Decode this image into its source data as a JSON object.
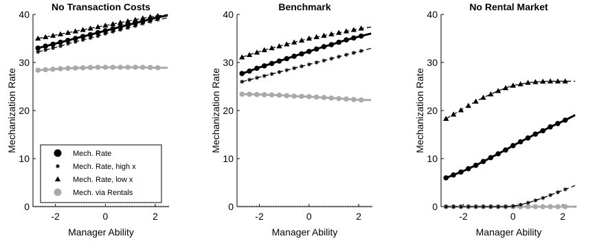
{
  "chart_data": [
    {
      "type": "line",
      "title": "No Transaction Costs",
      "xlabel": "Manager Ability",
      "ylabel": "Mechanization Rate",
      "xlim": [
        -2.9,
        2.55
      ],
      "ylim": [
        0,
        40
      ],
      "xticks": [
        -2,
        0,
        2
      ],
      "yticks": [
        0,
        10,
        20,
        30,
        40
      ],
      "grid": false,
      "legend": "bottom-left",
      "series": [
        {
          "key": "mech",
          "name": "Mech. Rate",
          "style": "solid-thick",
          "marker": "circle",
          "color": "#000000",
          "x": [
            -2.7,
            -2.4,
            -2.1,
            -1.8,
            -1.5,
            -1.2,
            -0.9,
            -0.6,
            -0.3,
            0.0,
            0.3,
            0.6,
            0.9,
            1.2,
            1.5,
            1.8,
            2.1,
            2.4
          ],
          "y": [
            33.0,
            33.4,
            33.8,
            34.2,
            34.6,
            35.0,
            35.4,
            35.8,
            36.2,
            36.6,
            37.0,
            37.4,
            37.8,
            38.2,
            38.6,
            39.0,
            39.4,
            39.7
          ]
        },
        {
          "key": "high",
          "name": "Mech. Rate, high x",
          "style": "dashed",
          "marker": "star",
          "color": "#000000",
          "x": [
            -2.7,
            -2.4,
            -2.1,
            -1.8,
            -1.5,
            -1.2,
            -0.9,
            -0.6,
            -0.3,
            0.0,
            0.3,
            0.6,
            0.9,
            1.2,
            1.5,
            1.8,
            2.1,
            2.4
          ],
          "y": [
            32.2,
            32.6,
            33.0,
            33.4,
            33.9,
            34.3,
            34.7,
            35.1,
            35.5,
            36.0,
            36.4,
            36.8,
            37.2,
            37.6,
            38.1,
            38.5,
            38.9,
            39.2
          ]
        },
        {
          "key": "low",
          "name": "Mech. Rate, low x",
          "style": "dashed",
          "marker": "triangle",
          "color": "#000000",
          "x": [
            -2.7,
            -2.4,
            -2.1,
            -1.8,
            -1.5,
            -1.2,
            -0.9,
            -0.6,
            -0.3,
            0.0,
            0.3,
            0.6,
            0.9,
            1.2,
            1.5,
            1.8,
            2.1,
            2.4
          ],
          "y": [
            35.0,
            35.3,
            35.6,
            35.9,
            36.2,
            36.5,
            36.8,
            37.1,
            37.4,
            37.7,
            38.0,
            38.3,
            38.6,
            38.9,
            39.2,
            39.5,
            39.7,
            39.9
          ]
        },
        {
          "key": "rental",
          "name": "Mech. via Rentals",
          "style": "solid-thick",
          "marker": "circle",
          "color": "#aaaaaa",
          "x": [
            -2.7,
            -2.4,
            -2.1,
            -1.8,
            -1.5,
            -1.2,
            -0.9,
            -0.6,
            -0.3,
            0.0,
            0.3,
            0.6,
            0.9,
            1.2,
            1.5,
            1.8,
            2.1,
            2.4
          ],
          "y": [
            28.4,
            28.5,
            28.6,
            28.7,
            28.8,
            28.85,
            28.9,
            28.95,
            29.0,
            29.0,
            29.0,
            29.0,
            29.0,
            29.0,
            29.0,
            28.95,
            28.9,
            28.9
          ]
        }
      ]
    },
    {
      "type": "line",
      "title": "Benchmark",
      "xlabel": "Manager Ability",
      "ylabel": "Mechanization Rate",
      "xlim": [
        -2.9,
        2.55
      ],
      "ylim": [
        0,
        40
      ],
      "xticks": [
        -2,
        0,
        2
      ],
      "yticks": [
        0,
        10,
        20,
        30,
        40
      ],
      "grid": false,
      "series": [
        {
          "key": "mech",
          "name": "Mech. Rate",
          "style": "solid-thick",
          "marker": "circle",
          "color": "#000000",
          "x": [
            -2.7,
            -2.4,
            -2.1,
            -1.8,
            -1.5,
            -1.2,
            -0.9,
            -0.6,
            -0.3,
            0.0,
            0.3,
            0.6,
            0.9,
            1.2,
            1.5,
            1.8,
            2.1,
            2.4
          ],
          "y": [
            27.7,
            28.2,
            28.8,
            29.3,
            29.8,
            30.3,
            30.8,
            31.3,
            31.8,
            32.3,
            32.8,
            33.3,
            33.7,
            34.2,
            34.7,
            35.1,
            35.5,
            35.9
          ]
        },
        {
          "key": "high",
          "name": "Mech. Rate, high x",
          "style": "dashed",
          "marker": "star",
          "color": "#000000",
          "x": [
            -2.7,
            -2.4,
            -2.1,
            -1.8,
            -1.5,
            -1.2,
            -0.9,
            -0.6,
            -0.3,
            0.0,
            0.3,
            0.6,
            0.9,
            1.2,
            1.5,
            1.8,
            2.1,
            2.4
          ],
          "y": [
            26.0,
            26.4,
            26.8,
            27.2,
            27.6,
            28.0,
            28.4,
            28.8,
            29.2,
            29.6,
            30.0,
            30.4,
            30.8,
            31.2,
            31.6,
            32.0,
            32.4,
            32.8
          ]
        },
        {
          "key": "low",
          "name": "Mech. Rate, low x",
          "style": "dashed",
          "marker": "triangle",
          "color": "#000000",
          "x": [
            -2.7,
            -2.4,
            -2.1,
            -1.8,
            -1.5,
            -1.2,
            -0.9,
            -0.6,
            -0.3,
            0.0,
            0.3,
            0.6,
            0.9,
            1.2,
            1.5,
            1.8,
            2.1,
            2.4
          ],
          "y": [
            31.1,
            31.6,
            32.1,
            32.6,
            33.0,
            33.4,
            33.8,
            34.2,
            34.6,
            35.0,
            35.3,
            35.6,
            35.9,
            36.2,
            36.5,
            36.8,
            37.1,
            37.3
          ]
        },
        {
          "key": "rental",
          "name": "Mech. via Rentals",
          "style": "solid-thick",
          "marker": "circle",
          "color": "#aaaaaa",
          "x": [
            -2.7,
            -2.4,
            -2.1,
            -1.8,
            -1.5,
            -1.2,
            -0.9,
            -0.6,
            -0.3,
            0.0,
            0.3,
            0.6,
            0.9,
            1.2,
            1.5,
            1.8,
            2.1,
            2.4
          ],
          "y": [
            23.4,
            23.4,
            23.35,
            23.3,
            23.25,
            23.2,
            23.1,
            23.0,
            22.95,
            22.9,
            22.8,
            22.7,
            22.6,
            22.5,
            22.4,
            22.3,
            22.2,
            22.2
          ]
        }
      ]
    },
    {
      "type": "line",
      "title": "No Rental Market",
      "xlabel": "Manager Ability",
      "ylabel": "Mechanization Rate",
      "xlim": [
        -2.9,
        2.55
      ],
      "ylim": [
        0,
        40
      ],
      "xticks": [
        -2,
        0,
        2
      ],
      "yticks": [
        0,
        10,
        20,
        30,
        40
      ],
      "grid": false,
      "series": [
        {
          "key": "mech",
          "name": "Mech. Rate",
          "style": "solid-thick",
          "marker": "circle",
          "color": "#000000",
          "x": [
            -2.7,
            -2.4,
            -2.1,
            -1.8,
            -1.5,
            -1.2,
            -0.9,
            -0.6,
            -0.3,
            0.0,
            0.3,
            0.6,
            0.9,
            1.2,
            1.5,
            1.8,
            2.1,
            2.4
          ],
          "y": [
            6.0,
            6.6,
            7.2,
            7.9,
            8.6,
            9.4,
            10.2,
            11.0,
            11.8,
            12.7,
            13.5,
            14.3,
            15.1,
            15.8,
            16.6,
            17.3,
            18.0,
            18.8
          ]
        },
        {
          "key": "high",
          "name": "Mech. Rate, high x",
          "style": "dashed",
          "marker": "star",
          "color": "#000000",
          "x": [
            -2.7,
            -2.4,
            -2.1,
            -1.8,
            -1.5,
            -1.2,
            -0.9,
            -0.6,
            -0.3,
            0.0,
            0.3,
            0.6,
            0.9,
            1.2,
            1.5,
            1.8,
            2.1,
            2.4
          ],
          "y": [
            0,
            0,
            0,
            0,
            0,
            0,
            0,
            0,
            0,
            0.1,
            0.4,
            0.8,
            1.3,
            1.8,
            2.4,
            3.0,
            3.6,
            4.2
          ]
        },
        {
          "key": "low",
          "name": "Mech. Rate, low x",
          "style": "dashed",
          "marker": "triangle",
          "color": "#000000",
          "x": [
            -2.7,
            -2.4,
            -2.1,
            -1.8,
            -1.5,
            -1.2,
            -0.9,
            -0.6,
            -0.3,
            0.0,
            0.3,
            0.6,
            0.9,
            1.2,
            1.5,
            1.8,
            2.1,
            2.4
          ],
          "y": [
            18.3,
            19.2,
            20.1,
            21.0,
            21.9,
            22.7,
            23.4,
            24.1,
            24.7,
            25.2,
            25.5,
            25.8,
            25.95,
            26.05,
            26.1,
            26.1,
            26.1,
            26.1
          ]
        },
        {
          "key": "rental",
          "name": "Mech. via Rentals",
          "style": "solid-thick",
          "marker": "circle",
          "color": "#aaaaaa",
          "x": [
            -2.7,
            -2.4,
            -2.1,
            -1.8,
            -1.5,
            -1.2,
            -0.9,
            -0.6,
            -0.3,
            0.0,
            0.3,
            0.6,
            0.9,
            1.2,
            1.5,
            1.8,
            2.1,
            2.4
          ],
          "y": [
            0,
            0,
            0,
            0,
            0,
            0,
            0,
            0,
            0,
            0,
            0,
            0,
            0,
            0,
            0,
            0,
            0,
            0
          ]
        }
      ]
    }
  ]
}
